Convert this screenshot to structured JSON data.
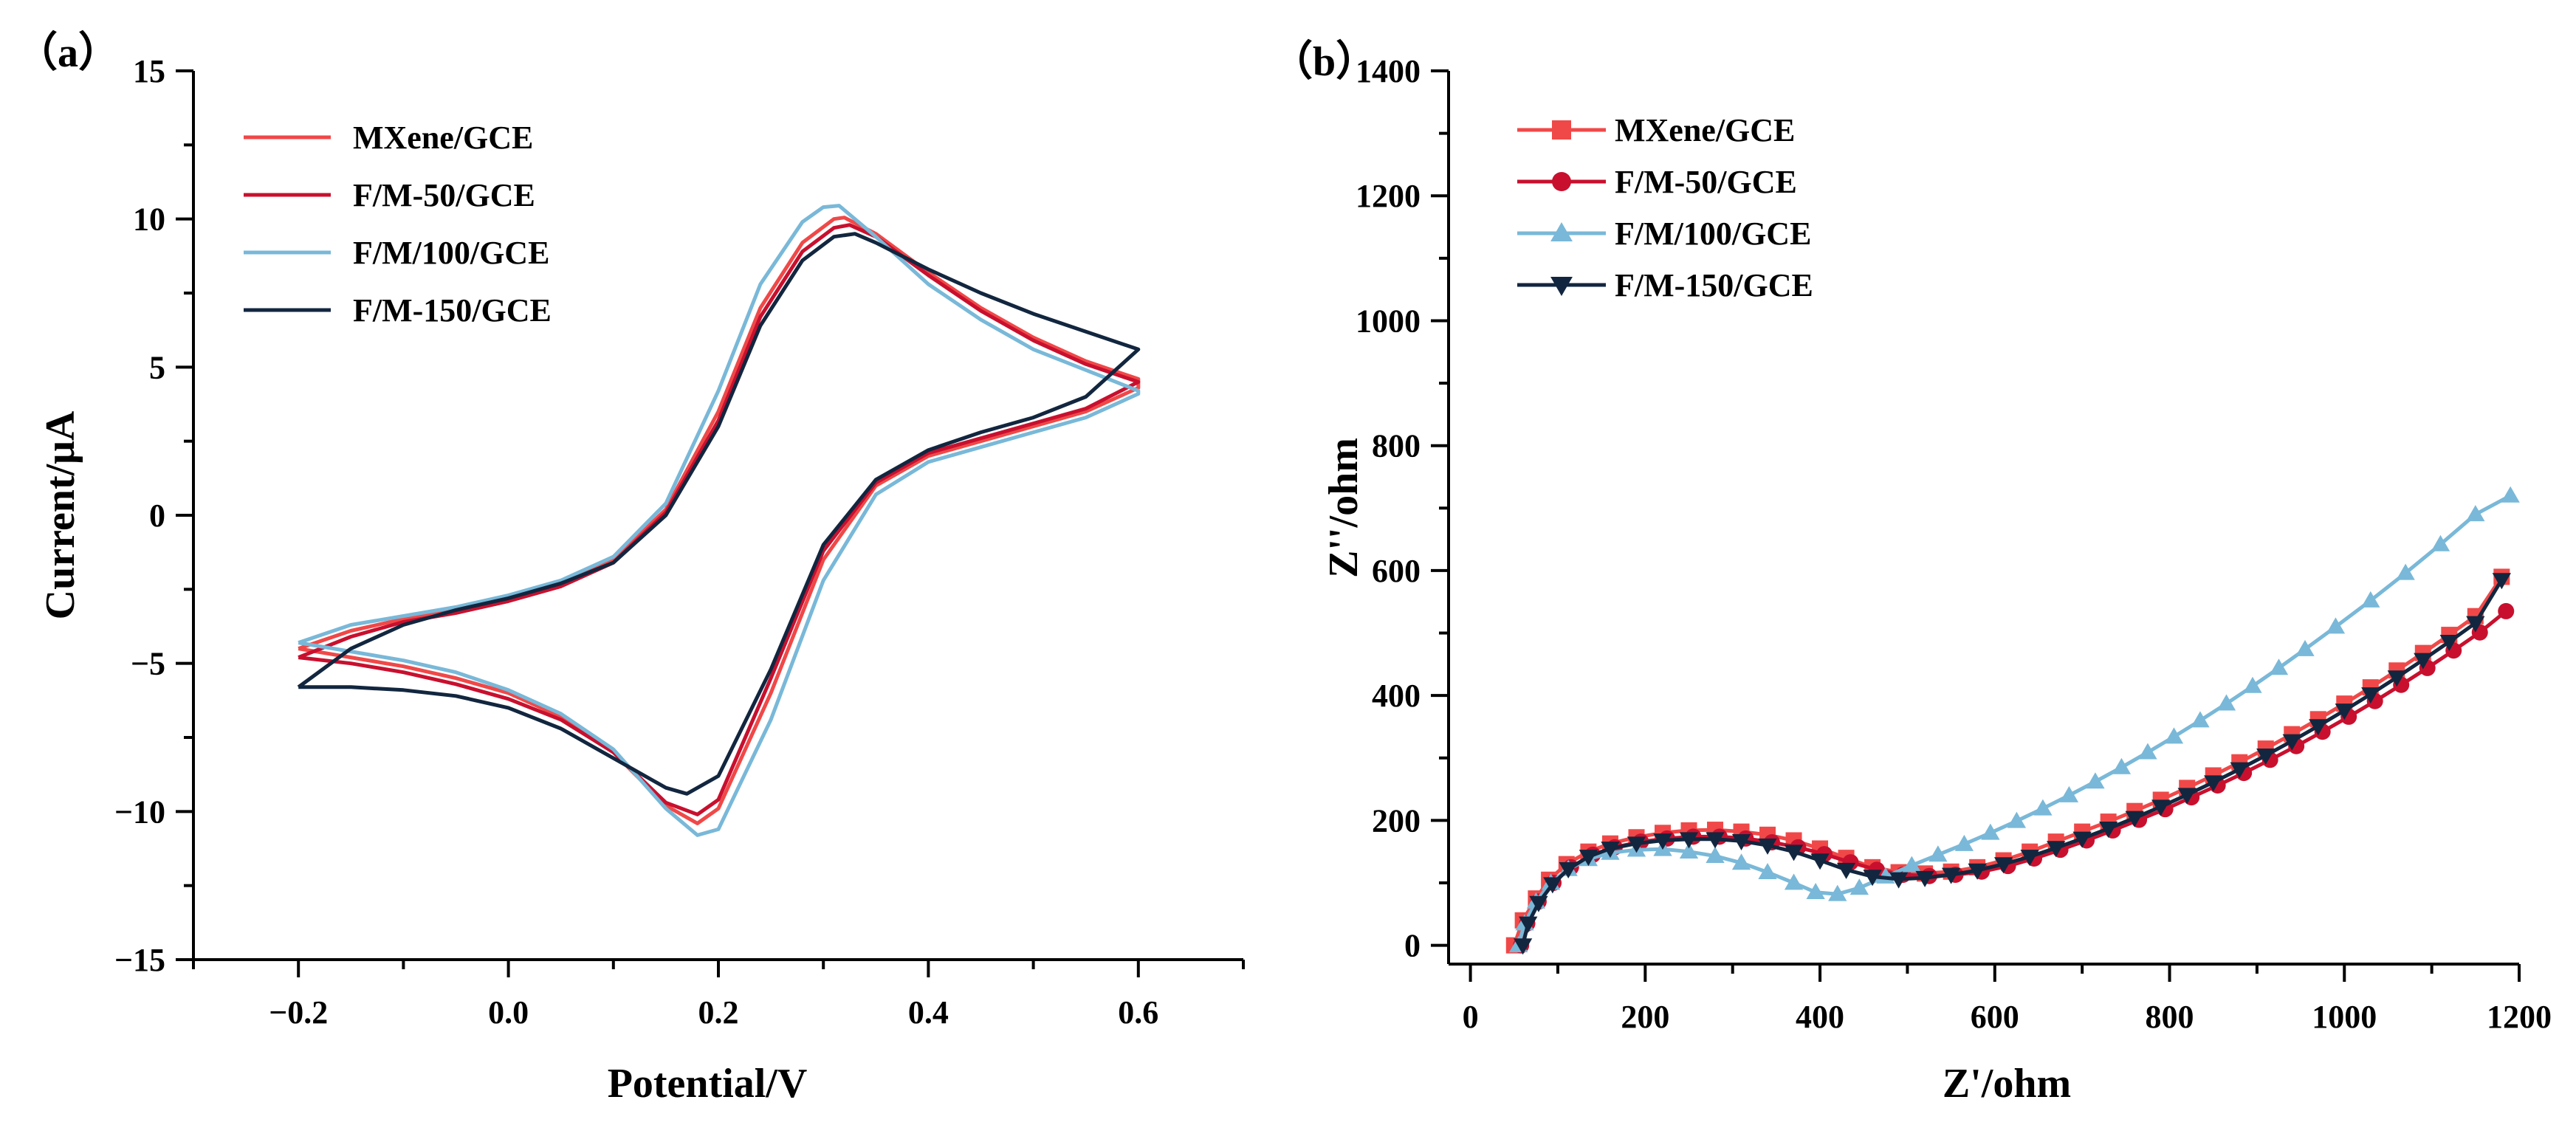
{
  "chart_data": [
    {
      "type": "line",
      "panel_label": "（a）",
      "title": "",
      "xlabel": "Potential/V",
      "ylabel": "Current/μA",
      "xlim": [
        -0.3,
        0.7
      ],
      "ylim": [
        -15,
        15
      ],
      "xticks": [
        -0.2,
        0.0,
        0.2,
        0.4,
        0.6
      ],
      "xtick_labels": [
        "−0.2",
        "0.0",
        "0.2",
        "0.4",
        "0.6"
      ],
      "yticks": [
        -15,
        -10,
        -5,
        0,
        5,
        10,
        15
      ],
      "ytick_labels": [
        "−15",
        "−10",
        "−5",
        "0",
        "5",
        "10",
        "15"
      ],
      "grid": false,
      "legend_position": "top-left",
      "series": [
        {
          "name": "MXene/GCE",
          "color": "#f04848",
          "x": [
            -0.2,
            -0.15,
            -0.1,
            -0.05,
            0.0,
            0.05,
            0.1,
            0.15,
            0.2,
            0.24,
            0.28,
            0.31,
            0.32,
            0.35,
            0.4,
            0.45,
            0.5,
            0.55,
            0.6,
            0.6,
            0.55,
            0.5,
            0.45,
            0.4,
            0.35,
            0.3,
            0.25,
            0.2,
            0.18,
            0.15,
            0.1,
            0.05,
            0.0,
            -0.05,
            -0.1,
            -0.15,
            -0.2
          ],
          "y": [
            -4.5,
            -3.9,
            -3.5,
            -3.2,
            -2.8,
            -2.3,
            -1.5,
            0.2,
            3.5,
            7.0,
            9.2,
            10.0,
            10.05,
            9.5,
            8.2,
            7.0,
            6.0,
            5.2,
            4.6,
            4.3,
            3.5,
            3.0,
            2.5,
            2.0,
            1.0,
            -1.5,
            -6.0,
            -9.9,
            -10.4,
            -9.8,
            -8.0,
            -6.8,
            -6.0,
            -5.5,
            -5.1,
            -4.8,
            -4.5
          ]
        },
        {
          "name": "F/M-50/GCE",
          "color": "#c8102e",
          "x": [
            -0.2,
            -0.15,
            -0.1,
            -0.05,
            0.0,
            0.05,
            0.1,
            0.15,
            0.2,
            0.24,
            0.28,
            0.31,
            0.325,
            0.35,
            0.4,
            0.45,
            0.5,
            0.55,
            0.6,
            0.6,
            0.55,
            0.5,
            0.45,
            0.4,
            0.35,
            0.3,
            0.25,
            0.2,
            0.18,
            0.15,
            0.1,
            0.05,
            0.0,
            -0.05,
            -0.1,
            -0.15,
            -0.2
          ],
          "y": [
            -4.8,
            -4.1,
            -3.6,
            -3.3,
            -2.9,
            -2.4,
            -1.6,
            0.1,
            3.2,
            6.7,
            8.9,
            9.7,
            9.8,
            9.4,
            8.1,
            6.9,
            5.9,
            5.1,
            4.5,
            4.5,
            3.6,
            3.1,
            2.6,
            2.1,
            1.1,
            -1.2,
            -5.5,
            -9.6,
            -10.1,
            -9.7,
            -8.0,
            -6.9,
            -6.2,
            -5.7,
            -5.3,
            -5.0,
            -4.8
          ]
        },
        {
          "name": "F/M/100/GCE",
          "color": "#79b8d8",
          "x": [
            -0.2,
            -0.15,
            -0.1,
            -0.05,
            0.0,
            0.05,
            0.1,
            0.15,
            0.2,
            0.24,
            0.28,
            0.3,
            0.315,
            0.35,
            0.4,
            0.45,
            0.5,
            0.55,
            0.6,
            0.6,
            0.55,
            0.5,
            0.45,
            0.4,
            0.35,
            0.3,
            0.25,
            0.2,
            0.18,
            0.15,
            0.1,
            0.05,
            0.0,
            -0.05,
            -0.1,
            -0.15,
            -0.2
          ],
          "y": [
            -4.3,
            -3.7,
            -3.4,
            -3.1,
            -2.7,
            -2.2,
            -1.4,
            0.4,
            4.2,
            7.8,
            9.9,
            10.4,
            10.45,
            9.4,
            7.8,
            6.6,
            5.6,
            4.9,
            4.2,
            4.1,
            3.3,
            2.8,
            2.3,
            1.8,
            0.7,
            -2.2,
            -6.9,
            -10.6,
            -10.8,
            -9.9,
            -7.9,
            -6.7,
            -5.9,
            -5.3,
            -4.9,
            -4.6,
            -4.3
          ]
        },
        {
          "name": "F/M-150/GCE",
          "color": "#12263f",
          "x": [
            -0.2,
            -0.15,
            -0.1,
            -0.05,
            0.0,
            0.05,
            0.1,
            0.15,
            0.2,
            0.24,
            0.28,
            0.31,
            0.33,
            0.35,
            0.4,
            0.45,
            0.5,
            0.55,
            0.6,
            0.6,
            0.55,
            0.5,
            0.45,
            0.4,
            0.35,
            0.3,
            0.25,
            0.2,
            0.17,
            0.15,
            0.1,
            0.05,
            0.0,
            -0.05,
            -0.1,
            -0.15,
            -0.2
          ],
          "y": [
            -5.8,
            -4.5,
            -3.7,
            -3.2,
            -2.8,
            -2.3,
            -1.6,
            0.0,
            3.0,
            6.4,
            8.6,
            9.4,
            9.5,
            9.2,
            8.3,
            7.5,
            6.8,
            6.2,
            5.6,
            5.6,
            4.0,
            3.3,
            2.8,
            2.2,
            1.2,
            -1.0,
            -5.2,
            -8.8,
            -9.4,
            -9.2,
            -8.2,
            -7.2,
            -6.5,
            -6.1,
            -5.9,
            -5.8,
            -5.8
          ]
        }
      ]
    },
    {
      "type": "scatter",
      "panel_label": "（b）",
      "title": "",
      "xlabel": "Z'/ohm",
      "ylabel": "Z''/ohm",
      "xlim": [
        -25,
        1200
      ],
      "ylim": [
        -30,
        1400
      ],
      "xticks": [
        0,
        200,
        400,
        600,
        800,
        1000,
        1200
      ],
      "xtick_labels": [
        "0",
        "200",
        "400",
        "600",
        "800",
        "1000",
        "1200"
      ],
      "yticks": [
        0,
        200,
        400,
        600,
        800,
        1000,
        1200,
        1400
      ],
      "ytick_labels": [
        "0",
        "200",
        "400",
        "600",
        "800",
        "1000",
        "1200",
        "1400"
      ],
      "grid": false,
      "legend_position": "top-left",
      "series": [
        {
          "name": "MXene/GCE",
          "color": "#f04848",
          "marker": "square",
          "x": [
            50,
            60,
            75,
            90,
            110,
            135,
            160,
            190,
            220,
            250,
            280,
            310,
            340,
            370,
            400,
            430,
            460,
            490,
            520,
            550,
            580,
            610,
            640,
            670,
            700,
            730,
            760,
            790,
            820,
            850,
            880,
            910,
            940,
            970,
            1000,
            1030,
            1060,
            1090,
            1120,
            1150,
            1180
          ],
          "y": [
            0,
            40,
            75,
            105,
            130,
            150,
            163,
            173,
            180,
            184,
            185,
            182,
            177,
            168,
            155,
            140,
            125,
            117,
            115,
            118,
            125,
            136,
            150,
            166,
            182,
            198,
            215,
            233,
            252,
            272,
            293,
            315,
            338,
            362,
            387,
            413,
            440,
            468,
            497,
            527,
            590
          ]
        },
        {
          "name": "F/M-50/GCE",
          "color": "#c8102e",
          "marker": "circle",
          "x": [
            58,
            65,
            78,
            95,
            115,
            140,
            165,
            195,
            225,
            255,
            285,
            315,
            345,
            375,
            405,
            435,
            465,
            495,
            525,
            555,
            585,
            615,
            645,
            675,
            705,
            735,
            765,
            795,
            825,
            855,
            885,
            915,
            945,
            975,
            1005,
            1035,
            1065,
            1095,
            1125,
            1155,
            1185
          ],
          "y": [
            0,
            35,
            70,
            100,
            125,
            145,
            157,
            166,
            171,
            174,
            174,
            171,
            165,
            157,
            146,
            133,
            121,
            113,
            111,
            113,
            118,
            127,
            139,
            153,
            168,
            184,
            201,
            218,
            237,
            256,
            276,
            297,
            319,
            342,
            366,
            391,
            417,
            444,
            472,
            501,
            535
          ]
        },
        {
          "name": "F/M/100/GCE",
          "color": "#79b8d8",
          "marker": "triangle-up",
          "x": [
            55,
            62,
            75,
            92,
            112,
            135,
            160,
            190,
            220,
            250,
            280,
            310,
            340,
            370,
            395,
            420,
            445,
            475,
            505,
            535,
            565,
            595,
            625,
            655,
            685,
            715,
            745,
            775,
            805,
            835,
            865,
            895,
            925,
            955,
            990,
            1030,
            1070,
            1110,
            1150,
            1190
          ],
          "y": [
            0,
            35,
            70,
            100,
            122,
            138,
            148,
            153,
            154,
            150,
            143,
            132,
            117,
            100,
            85,
            82,
            92,
            110,
            128,
            145,
            162,
            180,
            199,
            219,
            240,
            262,
            285,
            309,
            334,
            360,
            387,
            415,
            444,
            474,
            510,
            552,
            596,
            642,
            690,
            720
          ]
        },
        {
          "name": "F/M-150/GCE",
          "color": "#12263f",
          "marker": "triangle-down",
          "x": [
            60,
            66,
            78,
            94,
            112,
            135,
            160,
            190,
            220,
            250,
            280,
            310,
            340,
            370,
            400,
            430,
            460,
            490,
            520,
            550,
            580,
            610,
            640,
            670,
            700,
            730,
            760,
            790,
            820,
            850,
            880,
            910,
            940,
            970,
            1000,
            1030,
            1060,
            1090,
            1120,
            1150,
            1180
          ],
          "y": [
            0,
            35,
            68,
            98,
            122,
            142,
            155,
            163,
            168,
            170,
            170,
            167,
            160,
            150,
            136,
            121,
            110,
            106,
            108,
            113,
            120,
            130,
            142,
            156,
            171,
            187,
            204,
            222,
            241,
            261,
            282,
            304,
            327,
            351,
            376,
            402,
            429,
            457,
            486,
            516,
            585
          ]
        }
      ]
    }
  ]
}
